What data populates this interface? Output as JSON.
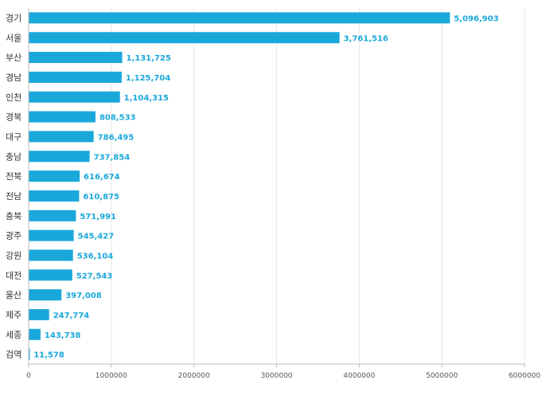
{
  "chart_data": {
    "type": "bar",
    "orientation": "horizontal",
    "title": "",
    "xlabel": "",
    "ylabel": "",
    "categories": [
      "경기",
      "서울",
      "부산",
      "경남",
      "인천",
      "경북",
      "대구",
      "충남",
      "전북",
      "전남",
      "충북",
      "광주",
      "강원",
      "대전",
      "울산",
      "제주",
      "세종",
      "검역"
    ],
    "values": [
      5096903,
      3761516,
      1131725,
      1125704,
      1104315,
      808533,
      786495,
      737854,
      616674,
      610875,
      571991,
      545427,
      536104,
      527543,
      397008,
      247774,
      143738,
      11578
    ],
    "value_labels": [
      "5,096,903",
      "3,761,516",
      "1,131,725",
      "1,125,704",
      "1,104,315",
      "808,533",
      "786,495",
      "737,854",
      "616,674",
      "610,875",
      "571,991",
      "545,427",
      "536,104",
      "527,543",
      "397,008",
      "247,774",
      "143,738",
      "11,578"
    ],
    "xlim": [
      0,
      6000000
    ],
    "x_ticks": [
      0,
      1000000,
      2000000,
      3000000,
      4000000,
      5000000,
      6000000
    ],
    "x_tick_labels": [
      "0",
      "1000000",
      "2000000",
      "3000000",
      "4000000",
      "5000000",
      "6000000"
    ],
    "grid": true,
    "legend": "none",
    "colors": {
      "bar": "#1aa8db",
      "label": "#1aa8db",
      "grid": "#e6e6e6",
      "axis": "#bbbbbb"
    }
  }
}
